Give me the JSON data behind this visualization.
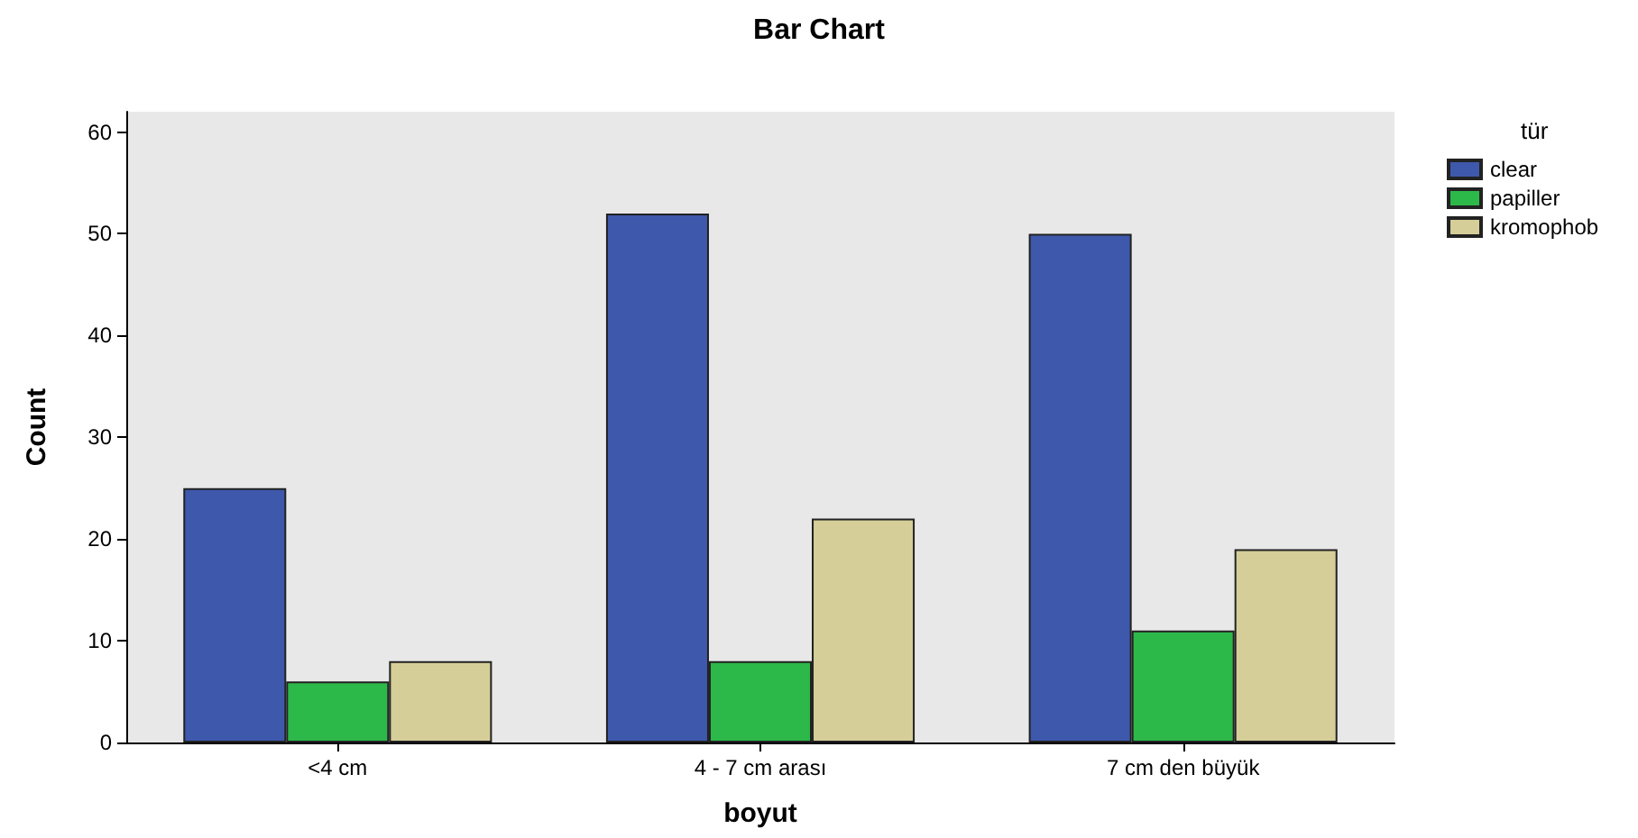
{
  "chart_data": {
    "type": "bar",
    "title": "Bar Chart",
    "xlabel": "boyut",
    "ylabel": "Count",
    "legend_title": "tür",
    "categories": [
      "<4 cm",
      "4 - 7 cm arası",
      "7 cm den büyük"
    ],
    "series": [
      {
        "name": "clear",
        "color": "#3e58ac",
        "values": [
          25,
          52,
          50
        ]
      },
      {
        "name": "papiller",
        "color": "#2db84a",
        "values": [
          6,
          8,
          11
        ]
      },
      {
        "name": "kromophob",
        "color": "#d5ce98",
        "values": [
          8,
          22,
          19
        ]
      }
    ],
    "ylim": [
      0,
      62
    ],
    "yticks": [
      0,
      10,
      20,
      30,
      40,
      50,
      60
    ],
    "grid": false,
    "legend": "top right"
  }
}
